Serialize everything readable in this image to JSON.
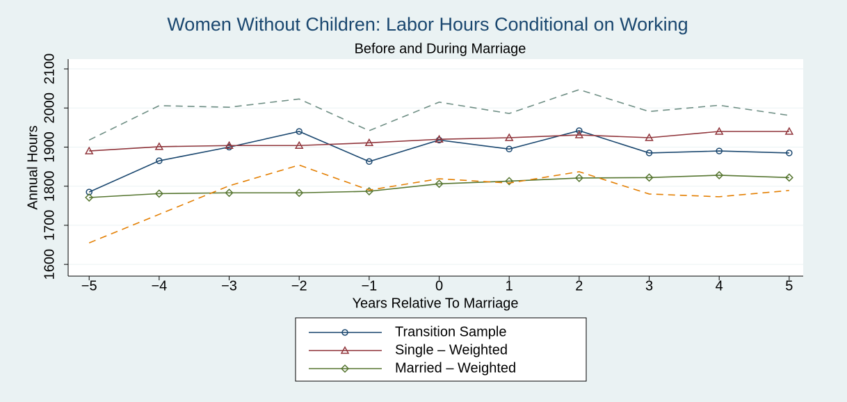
{
  "chart_data": {
    "type": "line",
    "title": "Women Without Children: Labor Hours Conditional on Working",
    "subtitle": "Before and During Marriage",
    "x_label": "Years Relative To Marriage",
    "y_label": "Annual Hours",
    "x": [
      -5,
      -4,
      -3,
      -2,
      -1,
      0,
      1,
      2,
      3,
      4,
      5
    ],
    "xlim": [
      -5.3,
      5.2
    ],
    "xticks": [
      {
        "value": -5,
        "label": "−5"
      },
      {
        "value": -4,
        "label": "−4"
      },
      {
        "value": -3,
        "label": "−3"
      },
      {
        "value": -2,
        "label": "−2"
      },
      {
        "value": -1,
        "label": "−1"
      },
      0,
      1,
      2,
      3,
      4,
      5
    ],
    "ylim": [
      1570,
      2125
    ],
    "yticks": [
      1600,
      1700,
      1800,
      1900,
      2000,
      2100
    ],
    "grid": true,
    "legend_position": "bottom",
    "series": [
      {
        "name": "Transition Sample",
        "color": "#1a476f",
        "marker": "circle",
        "dash": "solid",
        "values": [
          1785,
          1865,
          1900,
          1940,
          1863,
          1918,
          1895,
          1942,
          1885,
          1890,
          1885
        ]
      },
      {
        "name": "Single – Weighted",
        "color": "#90353b",
        "marker": "triangle",
        "dash": "solid",
        "values": [
          1890,
          1901,
          1904,
          1904,
          1911,
          1920,
          1924,
          1931,
          1924,
          1940,
          1940
        ]
      },
      {
        "name": "Married – Weighted",
        "color": "#55752f",
        "marker": "diamond",
        "dash": "solid",
        "values": [
          1771,
          1781,
          1783,
          1783,
          1787,
          1806,
          1813,
          1821,
          1822,
          1828,
          1822
        ]
      },
      {
        "color": "#6e8e84",
        "dash": "dashed",
        "values": [
          1918,
          2006,
          2002,
          2023,
          1942,
          2015,
          1986,
          2047,
          1991,
          2007,
          1981
        ]
      },
      {
        "color": "#e37e00",
        "dash": "dashed",
        "values": [
          1655,
          1728,
          1801,
          1854,
          1790,
          1819,
          1808,
          1837,
          1780,
          1773,
          1789
        ]
      }
    ]
  }
}
